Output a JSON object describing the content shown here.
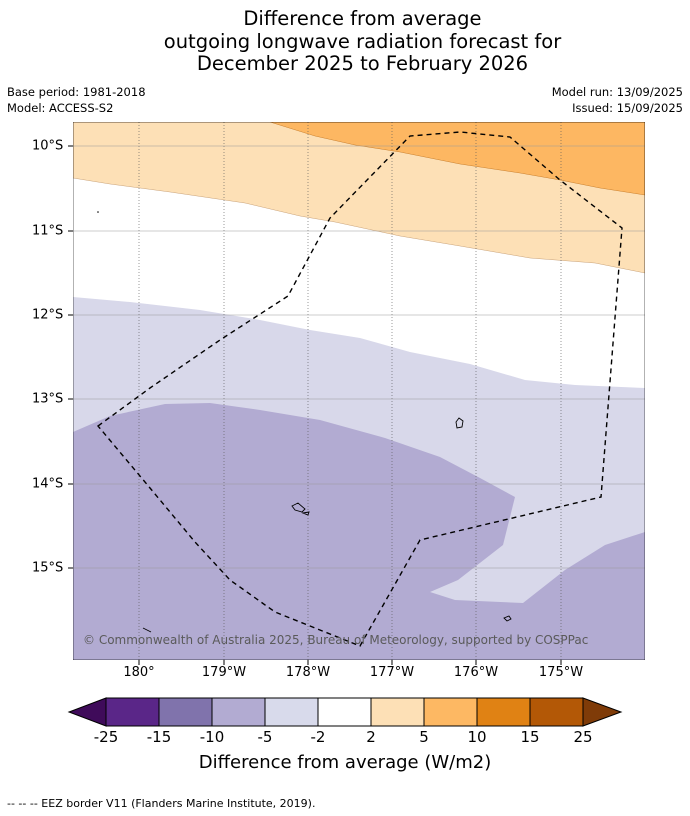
{
  "title": {
    "line1": "Difference from average",
    "line2": "outgoing longwave radiation forecast for",
    "line3": "December 2025 to February 2026"
  },
  "meta": {
    "base_period": "Base period: 1981-2018",
    "model": "Model: ACCESS-S2",
    "model_run": "Model run: 13/09/2025",
    "issued": "Issued: 15/09/2025"
  },
  "map": {
    "lat_labels": [
      "10°S",
      "11°S",
      "12°S",
      "13°S",
      "14°S",
      "15°S"
    ],
    "lon_labels": [
      "180°",
      "179°W",
      "178°W",
      "177°W",
      "176°W",
      "175°W"
    ],
    "credit": "© Commonwealth of Australia 2025, Bureau of Meteorology, supported by COSPPac",
    "colors": {
      "ocean_neutral": "#ffffff",
      "pos_2_5": "#fde0b6",
      "pos_5_10": "#fdb762",
      "neg_2_5": "#d8d8ea",
      "neg_5_10": "#b2abd2"
    }
  },
  "colorbar": {
    "ticks": [
      "-25",
      "-15",
      "-10",
      "-5",
      "-2",
      "2",
      "5",
      "10",
      "15",
      "25"
    ],
    "colors": [
      "#3f0b5a",
      "#5a2688",
      "#8073ac",
      "#b2abd2",
      "#d8daeb",
      "#ffffff",
      "#fde0b6",
      "#fdb863",
      "#e08214",
      "#b35806",
      "#7f3b08"
    ],
    "label": "Difference from average (W/m2)"
  },
  "footer": "--  --  -- EEZ border V11 (Flanders Marine Institute, 2019)."
}
